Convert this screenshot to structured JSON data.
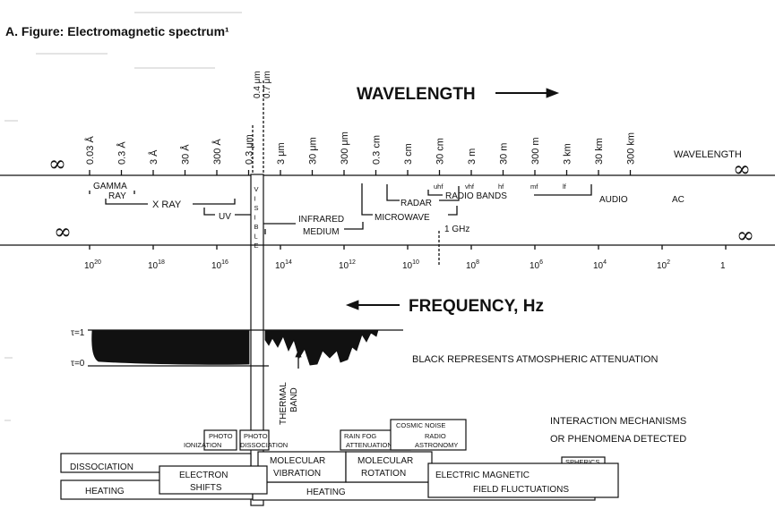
{
  "figure_title": "A. Figure: Electromagnetic spectrum¹",
  "wavelength_heading": "WAVELENGTH",
  "frequency_heading": "FREQUENCY,  Hz",
  "infinity_symbol": "∞",
  "wavelength_axis": {
    "end_label": "WAVELENGTH",
    "ticks": [
      "0.03 Å",
      "0.3 Å",
      "3 Å",
      "30 Å",
      "300 Å",
      "0.3 μm",
      "3 μm",
      "30 μm",
      "300 μm",
      "0.3 cm",
      "3 cm",
      "30 cm",
      "3 m",
      "30 m",
      "300 m",
      "3 km",
      "30 km",
      "300 km"
    ],
    "visible_bounds": [
      "0.4 μm",
      "0.7 μm"
    ]
  },
  "frequency_axis": {
    "ticks": [
      {
        "base": "10",
        "exp": "20"
      },
      {
        "base": "10",
        "exp": "18"
      },
      {
        "base": "10",
        "exp": "16"
      },
      {
        "base": "10",
        "exp": "14"
      },
      {
        "base": "10",
        "exp": "12"
      },
      {
        "base": "10",
        "exp": "10"
      },
      {
        "base": "10",
        "exp": "8"
      },
      {
        "base": "10",
        "exp": "6"
      },
      {
        "base": "10",
        "exp": "4"
      },
      {
        "base": "10",
        "exp": "2"
      },
      {
        "base": "1",
        "exp": ""
      }
    ],
    "ghz_marker": "1 GHz"
  },
  "bands": {
    "gamma_ray": [
      "GAMMA",
      "RAY"
    ],
    "x_ray": "X RAY",
    "uv": "UV",
    "visible": [
      "V",
      "I",
      "S",
      "I",
      "B",
      "L",
      "E"
    ],
    "infrared": "INFRARED",
    "medium": "MEDIUM",
    "microwave": "MICROWAVE",
    "radar": "RADAR",
    "radio_bands": "RADIO BANDS",
    "audio": "AUDIO",
    "ac": "AC",
    "sub_bands": [
      "uhf",
      "vhf",
      "hf",
      "mf",
      "lf"
    ]
  },
  "attenuation": {
    "tau_top": "τ=1",
    "tau_bottom": "τ=0",
    "caption": "BLACK REPRESENTS ATMOSPHERIC ATTENUATION",
    "thermal_band": [
      "THERMAL",
      "BAND"
    ]
  },
  "mechanisms": {
    "heading": [
      "INTERACTION MECHANISMS",
      "OR PHENOMENA DETECTED"
    ],
    "photo_ionization": [
      "PHOTO",
      "IONIZATION"
    ],
    "photo_dissociation": [
      "PHOTO",
      "DISSOCIATION"
    ],
    "rain_fog": [
      "RAIN   FOG",
      "ATTENUATION"
    ],
    "cosmic_noise": "COSMIC NOISE",
    "radio_astronomy": [
      "RADIO",
      "ASTRONOMY"
    ],
    "spherics": "SPHERICS",
    "dissociation": "DISSOCIATION",
    "electron_shifts": [
      "ELECTRON",
      "SHIFTS"
    ],
    "molecular_vibration": [
      "MOLECULAR",
      "VIBRATION"
    ],
    "molecular_rotation": [
      "MOLECULAR",
      "ROTATION"
    ],
    "electric_magnetic": "ELECTRIC MAGNETIC",
    "field_fluctuations": "FIELD FLUCTUATIONS",
    "heating": "HEATING"
  }
}
